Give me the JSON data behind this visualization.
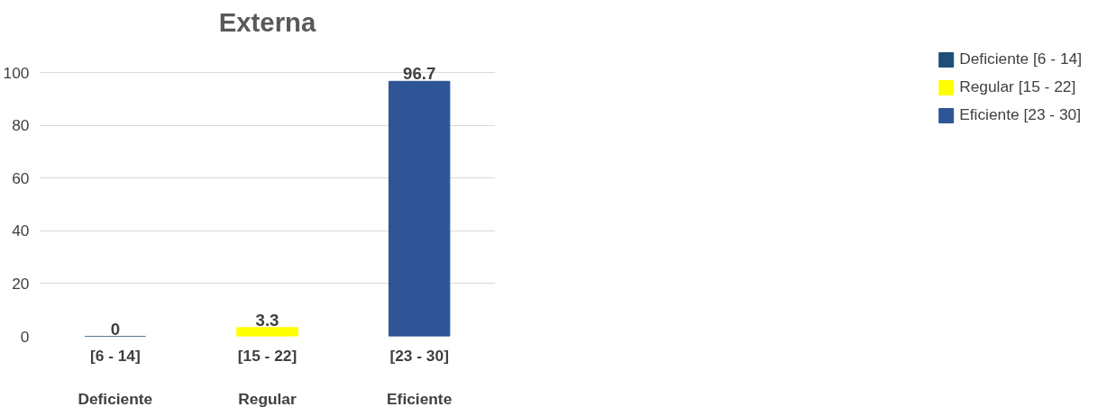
{
  "chart_data": {
    "type": "bar",
    "title": "Externa",
    "categories": [
      "[6 - 14]\n\nDeficiente",
      "[15 - 22]\n\nRegular",
      "[23 - 30]\n\nEficiente"
    ],
    "series": [
      {
        "name": "Deficiente [6 - 14]",
        "color": "#1f4e79",
        "values": [
          0,
          null,
          null
        ]
      },
      {
        "name": "Regular [15 - 22]",
        "color": "#ffff00",
        "values": [
          null,
          3.3,
          null
        ]
      },
      {
        "name": "Eficiente [23 - 30]",
        "color": "#2f5597",
        "values": [
          null,
          null,
          96.7
        ]
      }
    ],
    "ylim": [
      0,
      100
    ],
    "yticks": [
      0,
      20,
      40,
      60,
      80,
      100
    ],
    "grid": "y",
    "legend": "right",
    "data_labels": true
  }
}
